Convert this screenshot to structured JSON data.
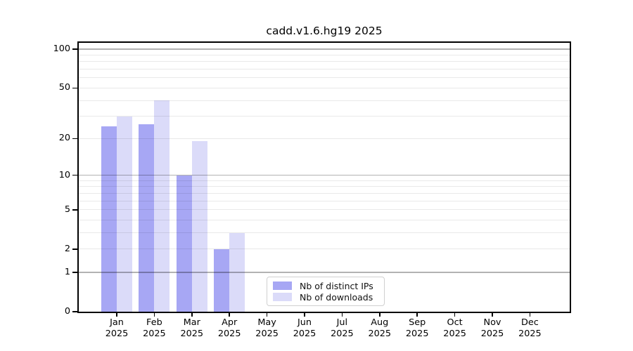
{
  "title": "cadd.v1.6.hg19 2025",
  "chart_data": {
    "type": "bar",
    "title": "cadd.v1.6.hg19 2025",
    "categories": [
      "Jan 2025",
      "Feb 2025",
      "Mar 2025",
      "Apr 2025",
      "May 2025",
      "Jun 2025",
      "Jul 2025",
      "Aug 2025",
      "Sep 2025",
      "Oct 2025",
      "Nov 2025",
      "Dec 2025"
    ],
    "months": [
      "Jan",
      "Feb",
      "Mar",
      "Apr",
      "May",
      "Jun",
      "Jul",
      "Aug",
      "Sep",
      "Oct",
      "Nov",
      "Dec"
    ],
    "year": "2025",
    "series": [
      {
        "name": "Nb of distinct IPs",
        "color": "#a7a7f4",
        "values": [
          25,
          26,
          10,
          2,
          0,
          0,
          0,
          0,
          0,
          0,
          0,
          0
        ]
      },
      {
        "name": "Nb of downloads",
        "color": "#dbdbf9",
        "values": [
          30,
          40,
          19,
          3,
          0,
          0,
          0,
          0,
          0,
          0,
          0,
          0
        ]
      }
    ],
    "yscale": "log10(value+1)",
    "ylim": [
      0,
      112
    ],
    "ytick_labels": [
      0,
      1,
      2,
      5,
      10,
      20,
      50,
      100
    ],
    "ygrid_major": [
      1,
      10,
      100
    ],
    "ygrid_minor": [
      2,
      3,
      4,
      5,
      6,
      7,
      8,
      9,
      20,
      30,
      40,
      50,
      60,
      70,
      80,
      90
    ],
    "grid": true,
    "legend_position": "lower center"
  },
  "colors": {
    "bar_distinct_ips": "#a7a7f4",
    "bar_downloads": "#dbdbf9",
    "spine": "#000000",
    "grid_major": "#b2b2b2",
    "grid_minor": "#e8e8e8",
    "legend_border": "#d0d0d0",
    "background": "#ffffff"
  }
}
